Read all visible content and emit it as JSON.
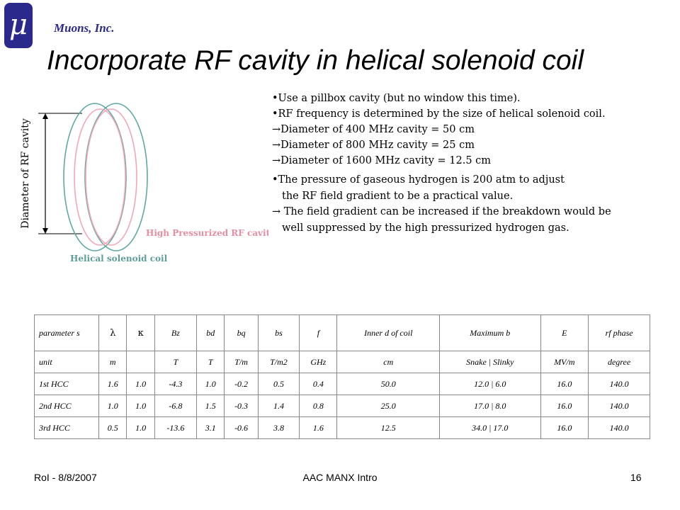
{
  "header": {
    "logo_symbol": "μ",
    "company": "Muons, Inc.",
    "title": "Incorporate RF cavity in helical solenoid coil"
  },
  "figure": {
    "axis_label": "Diameter of RF cavity",
    "cavity_label": "High Pressurized RF cavity",
    "coil_label": "Helical solenoid coil",
    "colors": {
      "coil": "#5fa9a5",
      "cavity": "#f4a6b6",
      "coil_label": "#5e9e9a",
      "cavity_label": "#e58ea2"
    }
  },
  "bullets": [
    "•Use a pillbox cavity (but no window this time).",
    "•RF frequency is determined by the size of helical solenoid coil.",
    "Diameter of 400 MHz cavity = 50 cm",
    "Diameter of 800 MHz cavity = 25 cm",
    "Diameter of 1600 MHz cavity = 12.5 cm"
  ],
  "arrow_glyph": "→",
  "bullets2": [
    "•The pressure of gaseous hydrogen is 200 atm to adjust",
    "the RF field gradient to be a practical value.",
    "The field gradient can be increased if the breakdown would be",
    "well suppressed by the high pressurized hydrogen gas."
  ],
  "table": {
    "header": [
      "parameter s",
      "λ",
      "κ",
      "Bz",
      "bd",
      "bq",
      "bs",
      "f",
      "Inner d of coil",
      "Maximum b",
      "E",
      "rf phase"
    ],
    "units": [
      "unit",
      "m",
      "",
      "T",
      "T",
      "T/m",
      "T/m2",
      "GHz",
      "cm",
      "Snake | Slinky",
      "MV/m",
      "degree"
    ],
    "rows": [
      [
        "1st HCC",
        "1.6",
        "1.0",
        "-4.3",
        "1.0",
        "-0.2",
        "0.5",
        "0.4",
        "50.0",
        "12.0 | 6.0",
        "16.0",
        "140.0"
      ],
      [
        "2nd HCC",
        "1.0",
        "1.0",
        "-6.8",
        "1.5",
        "-0.3",
        "1.4",
        "0.8",
        "25.0",
        "17.0 | 8.0",
        "16.0",
        "140.0"
      ],
      [
        "3rd HCC",
        "0.5",
        "1.0",
        "-13.6",
        "3.1",
        "-0.6",
        "3.8",
        "1.6",
        "12.5",
        "34.0 | 17.0",
        "16.0",
        "140.0"
      ]
    ]
  },
  "footer": {
    "left": "RoI - 8/8/2007",
    "center": "AAC MANX Intro",
    "page": "16"
  }
}
